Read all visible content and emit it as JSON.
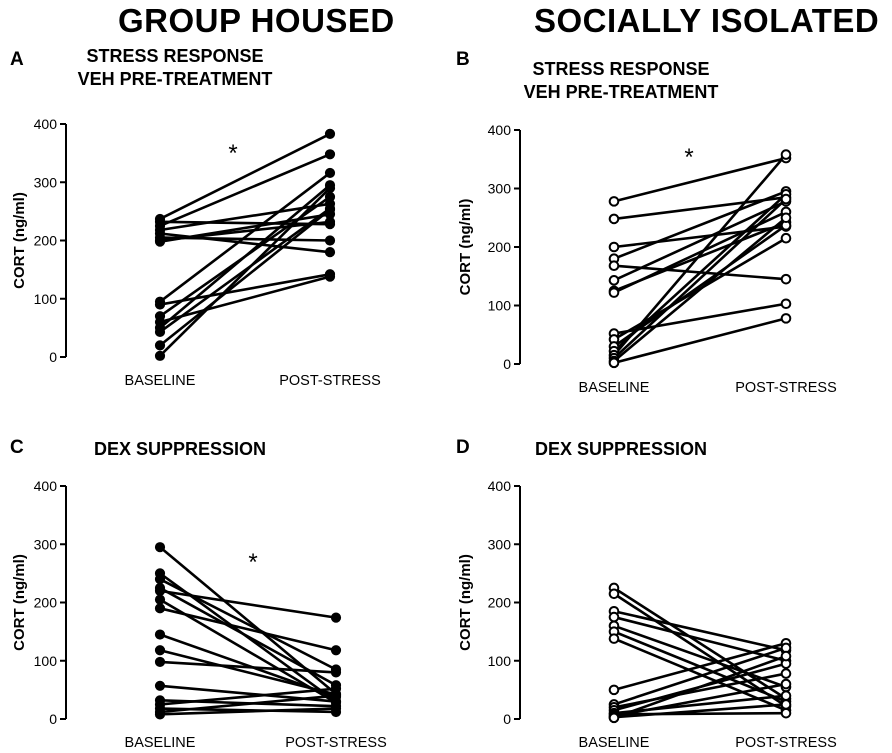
{
  "figure": {
    "column_titles": [
      "GROUP HOUSED",
      "SOCIALLY ISOLATED"
    ]
  },
  "chart_data": [
    {
      "panel": "A",
      "type": "line",
      "title_lines": [
        "STRESS RESPONSE",
        "VEH PRE-TREATMENT"
      ],
      "ylabel": "CORT (ng/ml)",
      "ylim": [
        0,
        400
      ],
      "yticks": [
        0,
        100,
        200,
        300,
        400
      ],
      "categories": [
        "BASELINE",
        "POST-STRESS"
      ],
      "marker": "filled",
      "significance": "*",
      "pairs": [
        [
          237,
          383
        ],
        [
          232,
          228
        ],
        [
          225,
          348
        ],
        [
          218,
          263
        ],
        [
          212,
          180
        ],
        [
          205,
          200
        ],
        [
          200,
          232
        ],
        [
          198,
          245
        ],
        [
          95,
          316
        ],
        [
          90,
          142
        ],
        [
          70,
          275
        ],
        [
          60,
          138
        ],
        [
          50,
          295
        ],
        [
          43,
          255
        ],
        [
          20,
          253
        ],
        [
          2,
          290
        ]
      ]
    },
    {
      "panel": "B",
      "type": "line",
      "title_lines": [
        "STRESS RESPONSE",
        "VEH PRE-TREATMENT"
      ],
      "ylabel": "CORT (ng/ml)",
      "ylim": [
        0,
        400
      ],
      "yticks": [
        0,
        100,
        200,
        300,
        400
      ],
      "categories": [
        "BASELINE",
        "POST-STRESS"
      ],
      "marker": "open",
      "significance": "*",
      "pairs": [
        [
          278,
          352
        ],
        [
          248,
          285
        ],
        [
          200,
          235
        ],
        [
          180,
          295
        ],
        [
          168,
          145
        ],
        [
          143,
          278
        ],
        [
          125,
          242
        ],
        [
          122,
          260
        ],
        [
          52,
          103
        ],
        [
          42,
          215
        ],
        [
          30,
          237
        ],
        [
          22,
          290
        ],
        [
          15,
          358
        ],
        [
          10,
          282
        ],
        [
          5,
          250
        ],
        [
          2,
          78
        ]
      ]
    },
    {
      "panel": "C",
      "type": "line",
      "title_lines": [
        "DEX SUPPRESSION"
      ],
      "ylabel": "CORT (ng/ml)",
      "ylim": [
        0,
        400
      ],
      "yticks": [
        0,
        100,
        200,
        300,
        400
      ],
      "categories": [
        "BASELINE",
        "POST-STRESS"
      ],
      "marker": "filled",
      "significance": "*",
      "pairs": [
        [
          295,
          43
        ],
        [
          250,
          30
        ],
        [
          240,
          85
        ],
        [
          225,
          58
        ],
        [
          220,
          174
        ],
        [
          205,
          28
        ],
        [
          190,
          118
        ],
        [
          145,
          38
        ],
        [
          118,
          42
        ],
        [
          98,
          80
        ],
        [
          57,
          30
        ],
        [
          32,
          22
        ],
        [
          25,
          52
        ],
        [
          18,
          12
        ],
        [
          12,
          40
        ],
        [
          8,
          18
        ]
      ]
    },
    {
      "panel": "D",
      "type": "line",
      "title_lines": [
        "DEX SUPPRESSION"
      ],
      "ylabel": "CORT (ng/ml)",
      "ylim": [
        0,
        400
      ],
      "yticks": [
        0,
        100,
        200,
        300,
        400
      ],
      "categories": [
        "BASELINE",
        "POST-STRESS"
      ],
      "marker": "open",
      "significance": "",
      "pairs": [
        [
          225,
          35
        ],
        [
          215,
          22
        ],
        [
          185,
          118
        ],
        [
          175,
          100
        ],
        [
          160,
          55
        ],
        [
          150,
          30
        ],
        [
          138,
          15
        ],
        [
          50,
          130
        ],
        [
          25,
          122
        ],
        [
          20,
          78
        ],
        [
          15,
          95
        ],
        [
          10,
          40
        ],
        [
          8,
          10
        ],
        [
          5,
          60
        ],
        [
          3,
          25
        ],
        [
          2,
          108
        ]
      ]
    }
  ]
}
